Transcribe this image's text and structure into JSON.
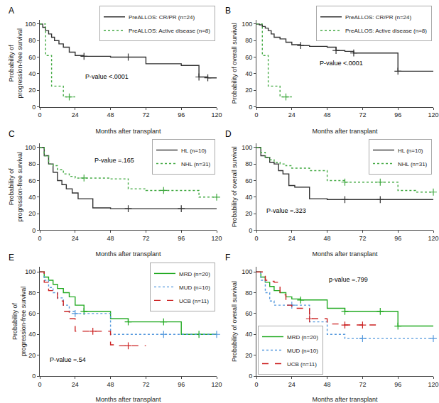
{
  "chart_data": [
    {
      "type": "step",
      "title": "A",
      "xlabel": "Months after transplant",
      "ylabel": "Probability of\nprogression-free survival",
      "annotations": [
        "P-value <.0001"
      ],
      "legend": "upper right",
      "grid": false,
      "xlim": [
        0,
        120
      ],
      "ylim": [
        0,
        105
      ],
      "xticks": [
        0,
        24,
        48,
        72,
        96,
        120
      ],
      "yticks": [
        0,
        20,
        40,
        60,
        80,
        100
      ],
      "series": [
        {
          "name": "PreALLOS: CR/PR (n=24)",
          "color": "#333333",
          "line_style": "solid",
          "marker": "+",
          "x": [
            0,
            2,
            4,
            6,
            8,
            10,
            13,
            16,
            20,
            24,
            30,
            36,
            48,
            60,
            72,
            84,
            96,
            108,
            114,
            120
          ],
          "values": [
            100,
            96,
            92,
            88,
            84,
            80,
            76,
            72,
            66,
            62,
            61,
            61,
            60,
            60,
            52,
            52,
            50,
            36,
            35,
            35
          ],
          "censors_x": [
            30,
            60,
            108,
            114
          ],
          "censors_y": [
            61,
            60,
            36,
            35
          ]
        },
        {
          "name": "PreALLOS: Active disease (n=8)",
          "color": "#44aa44",
          "line_style": "dotted",
          "marker": "+",
          "x": [
            0,
            4,
            8,
            12,
            16,
            20,
            24
          ],
          "values": [
            100,
            62,
            25,
            25,
            12,
            12,
            12
          ],
          "censors_x": [
            20
          ],
          "censors_y": [
            12
          ]
        }
      ]
    },
    {
      "type": "step",
      "title": "B",
      "xlabel": "Months after transplant",
      "ylabel": "Probability of overall survival",
      "annotations": [
        "P-value <.0001"
      ],
      "legend": "upper right",
      "grid": false,
      "xlim": [
        0,
        120
      ],
      "ylim": [
        0,
        105
      ],
      "xticks": [
        0,
        24,
        48,
        72,
        96,
        120
      ],
      "yticks": [
        0,
        20,
        40,
        60,
        80,
        100
      ],
      "series": [
        {
          "name": "PreALLOS: CR/PR (n=24)",
          "color": "#333333",
          "line_style": "solid",
          "marker": "+",
          "x": [
            0,
            2,
            4,
            6,
            8,
            10,
            12,
            16,
            20,
            24,
            30,
            36,
            48,
            54,
            60,
            66,
            72,
            84,
            96,
            108,
            114,
            120
          ],
          "values": [
            100,
            99,
            97,
            95,
            92,
            88,
            84,
            82,
            78,
            75,
            74,
            73,
            72,
            68,
            67,
            65,
            65,
            65,
            43,
            43,
            43,
            43
          ],
          "censors_x": [
            30,
            54,
            66,
            96
          ],
          "censors_y": [
            74,
            68,
            65,
            43
          ]
        },
        {
          "name": "PreALLOS: Active disease (n=8)",
          "color": "#44aa44",
          "line_style": "dotted",
          "marker": "+",
          "x": [
            0,
            4,
            8,
            12,
            16,
            20,
            24
          ],
          "values": [
            100,
            62,
            25,
            25,
            12,
            12,
            12
          ],
          "censors_x": [
            20
          ],
          "censors_y": [
            12
          ]
        }
      ]
    },
    {
      "type": "step",
      "title": "C",
      "xlabel": "Months after transplant",
      "ylabel": "Probability of\nprogression-free survival",
      "annotations": [
        "P-value =.165"
      ],
      "legend": "upper right",
      "grid": false,
      "xlim": [
        0,
        120
      ],
      "ylim": [
        0,
        105
      ],
      "xticks": [
        0,
        24,
        48,
        72,
        96,
        120
      ],
      "yticks": [
        0,
        20,
        40,
        60,
        80,
        100
      ],
      "series": [
        {
          "name": "HL (n=10)",
          "color": "#333333",
          "line_style": "solid",
          "marker": "+",
          "x": [
            0,
            3,
            6,
            9,
            12,
            15,
            18,
            22,
            26,
            36,
            48,
            60,
            72,
            84,
            96,
            108,
            120
          ],
          "values": [
            100,
            90,
            80,
            70,
            60,
            55,
            50,
            45,
            38,
            27,
            26,
            26,
            26,
            26,
            26,
            26,
            26
          ],
          "censors_x": [
            60,
            96
          ],
          "censors_y": [
            26,
            26
          ]
        },
        {
          "name": "NHL (n=31)",
          "color": "#44aa44",
          "line_style": "dotted",
          "marker": "+",
          "x": [
            0,
            3,
            6,
            9,
            12,
            16,
            20,
            24,
            30,
            36,
            48,
            60,
            72,
            84,
            96,
            108,
            120
          ],
          "values": [
            100,
            90,
            80,
            78,
            73,
            68,
            65,
            63,
            63,
            63,
            62,
            50,
            48,
            48,
            48,
            40,
            40
          ],
          "censors_x": [
            30,
            84,
            120
          ],
          "censors_y": [
            63,
            48,
            40
          ]
        }
      ]
    },
    {
      "type": "step",
      "title": "D",
      "xlabel": "Months after transplant",
      "ylabel": "Probability of overall survival",
      "annotations": [
        "P-value =.323"
      ],
      "legend": "upper right",
      "grid": false,
      "xlim": [
        0,
        120
      ],
      "ylim": [
        0,
        105
      ],
      "xticks": [
        0,
        24,
        48,
        72,
        96,
        120
      ],
      "yticks": [
        0,
        20,
        40,
        60,
        80,
        100
      ],
      "series": [
        {
          "name": "HL (n=10)",
          "color": "#333333",
          "line_style": "solid",
          "marker": "+",
          "x": [
            0,
            3,
            6,
            9,
            12,
            15,
            18,
            22,
            26,
            36,
            48,
            60,
            72,
            84,
            96,
            108,
            120
          ],
          "values": [
            100,
            90,
            88,
            82,
            80,
            72,
            68,
            54,
            52,
            38,
            37,
            37,
            37,
            37,
            37,
            37,
            37
          ],
          "censors_x": [
            60,
            84
          ],
          "censors_y": [
            37,
            37
          ]
        },
        {
          "name": "NHL (n=31)",
          "color": "#44aa44",
          "line_style": "dotted",
          "marker": "+",
          "x": [
            0,
            3,
            6,
            9,
            12,
            16,
            20,
            24,
            36,
            48,
            60,
            72,
            84,
            96,
            108,
            120
          ],
          "values": [
            100,
            94,
            88,
            85,
            82,
            80,
            78,
            75,
            72,
            60,
            58,
            58,
            58,
            48,
            46,
            46
          ],
          "censors_x": [
            60,
            84,
            120
          ],
          "censors_y": [
            58,
            58,
            46
          ]
        }
      ]
    },
    {
      "type": "step",
      "title": "E",
      "xlabel": "Months after transplant",
      "ylabel": "Probability of\nprogression-free survival",
      "annotations": [
        "P-value =.54"
      ],
      "legend": "upper right",
      "grid": false,
      "xlim": [
        0,
        120
      ],
      "ylim": [
        0,
        105
      ],
      "xticks": [
        0,
        24,
        48,
        72,
        96,
        120
      ],
      "yticks": [
        0,
        20,
        40,
        60,
        80,
        100
      ],
      "series": [
        {
          "name": "MRD (n=20)",
          "color": "#22aa22",
          "line_style": "solid",
          "marker": "+",
          "x": [
            0,
            3,
            6,
            9,
            12,
            16,
            20,
            24,
            30,
            36,
            48,
            60,
            72,
            84,
            96,
            108,
            120
          ],
          "values": [
            100,
            95,
            92,
            88,
            84,
            80,
            76,
            68,
            62,
            62,
            55,
            52,
            52,
            52,
            40,
            40,
            40
          ],
          "censors_x": [
            30,
            60,
            84,
            108
          ],
          "censors_y": [
            62,
            52,
            52,
            40
          ]
        },
        {
          "name": "MUD (n=10)",
          "color": "#5599dd",
          "line_style": "dotted",
          "marker": "+",
          "x": [
            0,
            3,
            6,
            9,
            12,
            16,
            20,
            24,
            36,
            48,
            60,
            72,
            84,
            96,
            108,
            120
          ],
          "values": [
            100,
            92,
            85,
            80,
            75,
            68,
            62,
            60,
            60,
            40,
            40,
            40,
            40,
            40,
            40,
            40
          ],
          "censors_x": [
            24,
            84,
            120
          ],
          "censors_y": [
            60,
            40,
            40
          ]
        },
        {
          "name": "UCB (n=11)",
          "color": "#cc2222",
          "line_style": "dashed",
          "marker": "+",
          "x": [
            0,
            3,
            6,
            9,
            12,
            16,
            20,
            24,
            36,
            48,
            54,
            60,
            72
          ],
          "values": [
            100,
            90,
            82,
            80,
            72,
            62,
            55,
            43,
            43,
            30,
            29,
            29,
            29
          ],
          "censors_x": [
            36,
            60
          ],
          "censors_y": [
            43,
            29
          ]
        }
      ]
    },
    {
      "type": "step",
      "title": "F",
      "xlabel": "Months after transplant",
      "ylabel": "Probability of overall survival",
      "annotations": [
        "p-value =.799"
      ],
      "legend": "lower left",
      "grid": false,
      "xlim": [
        0,
        120
      ],
      "ylim": [
        0,
        105
      ],
      "xticks": [
        0,
        24,
        48,
        72,
        96,
        120
      ],
      "yticks": [
        0,
        20,
        40,
        60,
        80,
        100
      ],
      "series": [
        {
          "name": "MRD (n=20)",
          "color": "#22aa22",
          "line_style": "solid",
          "marker": "+",
          "x": [
            0,
            3,
            6,
            9,
            12,
            16,
            20,
            24,
            30,
            36,
            48,
            60,
            72,
            84,
            96,
            108,
            120
          ],
          "values": [
            100,
            95,
            90,
            86,
            82,
            80,
            76,
            74,
            73,
            73,
            65,
            62,
            62,
            62,
            48,
            48,
            48
          ],
          "censors_x": [
            30,
            60,
            84,
            96
          ],
          "censors_y": [
            73,
            62,
            62,
            48
          ]
        },
        {
          "name": "MUD (n=10)",
          "color": "#5599dd",
          "line_style": "dotted",
          "marker": "+",
          "x": [
            0,
            3,
            6,
            9,
            12,
            16,
            20,
            24,
            36,
            48,
            60,
            72,
            84,
            96,
            108,
            120
          ],
          "values": [
            100,
            92,
            80,
            72,
            68,
            68,
            68,
            68,
            52,
            40,
            36,
            36,
            36,
            36,
            36,
            36
          ],
          "censors_x": [
            24,
            72,
            120
          ],
          "censors_y": [
            68,
            36,
            36
          ]
        },
        {
          "name": "UCB (n=11)",
          "color": "#cc2222",
          "line_style": "dashed",
          "marker": "+",
          "x": [
            0,
            3,
            6,
            9,
            12,
            16,
            20,
            24,
            36,
            48,
            56,
            60,
            72,
            84
          ],
          "values": [
            100,
            100,
            92,
            91,
            90,
            78,
            68,
            65,
            55,
            50,
            49,
            49,
            49,
            49
          ],
          "censors_x": [
            36,
            60,
            72
          ],
          "censors_y": [
            55,
            49,
            49
          ]
        }
      ]
    }
  ]
}
